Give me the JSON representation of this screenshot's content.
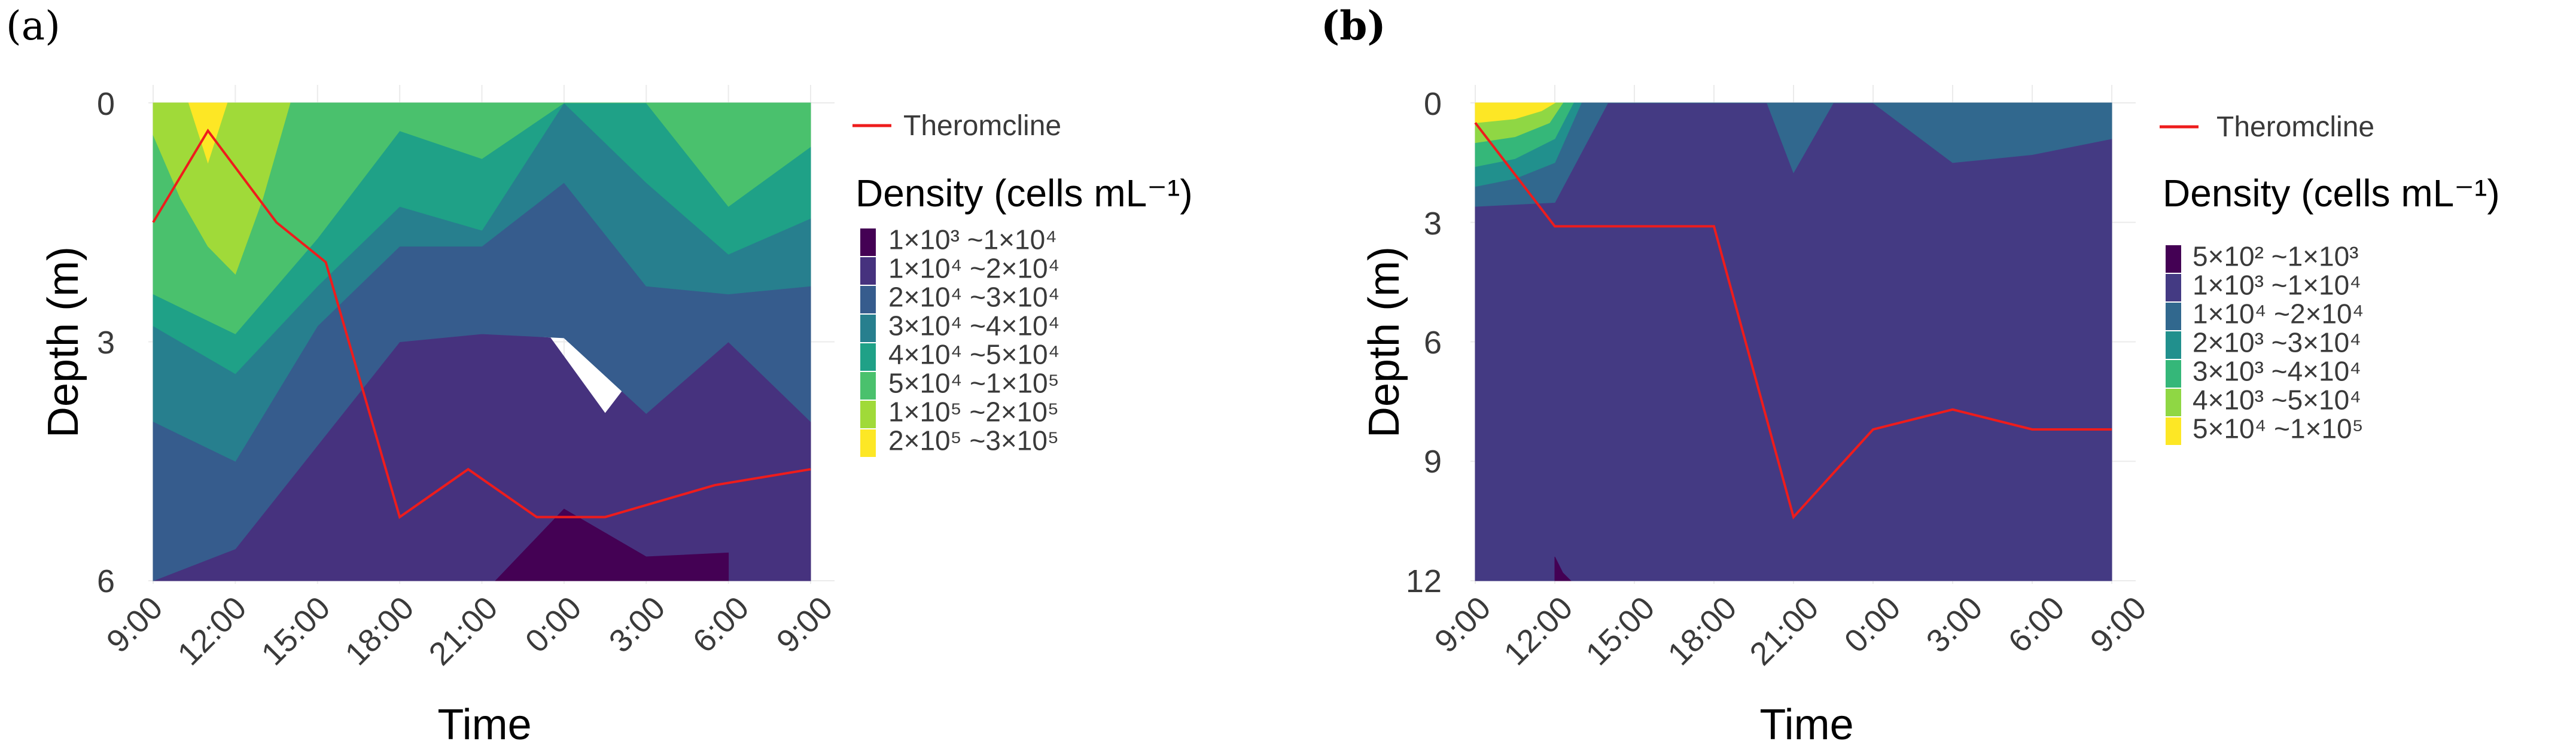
{
  "colors": {
    "thermocline": "#ee1c1c",
    "palette_a": [
      "#440154",
      "#46327e",
      "#365c8d",
      "#277f8e",
      "#1fa187",
      "#4ac16d",
      "#a0da39",
      "#fde725"
    ],
    "palette_b": [
      "#440154",
      "#443a83",
      "#31688e",
      "#21908d",
      "#35b779",
      "#8fd744",
      "#fde725"
    ]
  },
  "chart_data": [
    {
      "panel_label": "(a)",
      "type": "area",
      "subtype": "filled-contour",
      "xlabel": "Time",
      "ylabel": "Depth (m)",
      "x_ticks": [
        "9:00",
        "12:00",
        "15:00",
        "18:00",
        "21:00",
        "0:00",
        "3:00",
        "6:00",
        "9:00"
      ],
      "y_ticks": [
        "0",
        "3",
        "6"
      ],
      "ylim": [
        0,
        6
      ],
      "y_reversed": true,
      "legend_title": "Density (cells mL⁻¹)",
      "thermocline_label": "Theromcline",
      "legend_levels": [
        "1×10³ ~1×10⁴",
        "1×10⁴ ~2×10⁴",
        "2×10⁴ ~3×10⁴",
        "3×10⁴ ~4×10⁴",
        "4×10⁴ ~5×10⁴",
        "5×10⁴ ~1×10⁵",
        "1×10⁵ ~2×10⁵",
        "2×10⁵ ~3×10⁵"
      ],
      "x_hours": [
        0,
        3,
        6,
        9,
        12,
        15,
        18,
        21,
        24
      ],
      "thermocline": {
        "hours": [
          0,
          2,
          4.5,
          6.3,
          9,
          11.5,
          14,
          16.5,
          20.5,
          24
        ],
        "depth": [
          1.5,
          0.35,
          1.5,
          2.0,
          5.2,
          4.6,
          5.2,
          5.2,
          4.8,
          4.6
        ]
      },
      "bands": [
        {
          "level": 0,
          "hours": [
            0,
            24
          ],
          "top": [
            6,
            6
          ],
          "bottom": [
            6,
            6
          ]
        },
        {
          "level": 1,
          "hours": [
            0,
            3,
            6,
            9,
            11,
            12.5,
            14.5,
            16.5,
            18.5,
            21,
            24
          ],
          "top": [
            6,
            5.6,
            4.3,
            3.0,
            2.9,
            2.9,
            2.95,
            3.9,
            3.0,
            2.95,
            4.0
          ],
          "bottom": [
            6,
            6,
            6,
            6,
            6,
            6,
            6,
            6,
            6,
            6,
            6
          ]
        },
        {
          "level": 2,
          "hours": [
            0,
            3,
            6,
            9,
            12,
            15,
            18,
            21,
            24
          ],
          "top": [
            4.0,
            4.5,
            2.8,
            1.8,
            1.8,
            1.0,
            2.3,
            2.4,
            2.3
          ],
          "bottom": [
            6,
            5.6,
            4.3,
            3.0,
            2.9,
            2.95,
            3.9,
            3.0,
            4.0
          ]
        },
        {
          "level": 3,
          "hours": [
            0,
            3,
            6,
            9,
            12,
            15,
            18,
            21,
            24
          ],
          "top": [
            2.8,
            3.4,
            2.3,
            1.3,
            1.6,
            0.0,
            1.0,
            1.9,
            1.45
          ],
          "bottom": [
            4.0,
            4.5,
            2.8,
            1.8,
            1.8,
            1.0,
            2.3,
            2.4,
            2.3
          ]
        },
        {
          "level": 4,
          "hours": [
            0,
            3,
            6,
            9,
            12,
            15,
            18,
            21,
            24
          ],
          "top": [
            2.4,
            2.9,
            1.7,
            0.35,
            0.7,
            0.0,
            0.0,
            1.3,
            0.55
          ],
          "bottom": [
            2.8,
            3.4,
            2.3,
            1.3,
            1.6,
            0.0,
            1.0,
            1.9,
            1.45
          ]
        },
        {
          "level": 5,
          "hours": [
            0,
            3,
            6,
            9,
            12,
            15,
            18,
            21,
            24
          ],
          "top": [
            0.0,
            0.0,
            0.0,
            0.0,
            0.0,
            0.0,
            0.0,
            0.0,
            0.0
          ],
          "bottom": [
            2.4,
            2.9,
            1.7,
            0.35,
            0.7,
            0.0,
            0.0,
            1.3,
            0.55
          ]
        },
        {
          "level": 6,
          "hours": [
            0,
            1,
            2,
            3,
            4,
            5
          ],
          "top": [
            0.0,
            0.0,
            0.0,
            0.0,
            0.0,
            0.0
          ],
          "bottom": [
            0.4,
            1.2,
            1.8,
            2.15,
            1.2,
            0.0
          ]
        },
        {
          "level": 7,
          "hours": [
            1.3,
            2,
            2.7
          ],
          "top": [
            0.0,
            0.0,
            0.0
          ],
          "bottom": [
            0.0,
            0.75,
            0.0
          ]
        },
        {
          "level": 0,
          "hours": [
            12.5,
            15,
            18,
            21,
            21
          ],
          "top": [
            6,
            5.1,
            5.7,
            5.65,
            6
          ],
          "bottom": [
            6,
            6,
            6,
            6,
            6
          ]
        }
      ]
    },
    {
      "panel_label": "(b)",
      "type": "area",
      "subtype": "filled-contour",
      "xlabel": "Time",
      "ylabel": "Depth (m)",
      "x_ticks": [
        "9:00",
        "12:00",
        "15:00",
        "18:00",
        "21:00",
        "0:00",
        "3:00",
        "6:00",
        "9:00"
      ],
      "y_ticks": [
        "0",
        "3",
        "6",
        "9",
        "12"
      ],
      "ylim": [
        0,
        12
      ],
      "y_reversed": true,
      "legend_title": "Density (cells mL⁻¹)",
      "thermocline_label": "Theromcline",
      "legend_levels": [
        "5×10² ~1×10³",
        "1×10³ ~1×10⁴",
        "1×10⁴ ~2×10⁴",
        "2×10³ ~3×10⁴",
        "3×10³ ~4×10⁴",
        "4×10³ ~5×10⁴",
        "5×10⁴ ~1×10⁵"
      ],
      "x_hours": [
        0,
        3,
        6,
        9,
        12,
        15,
        18,
        21,
        24
      ],
      "thermocline": {
        "hours": [
          0,
          3,
          9,
          12,
          15,
          18,
          21,
          24
        ],
        "depth": [
          0.5,
          3.1,
          3.1,
          10.4,
          8.2,
          7.7,
          8.2,
          8.2
        ]
      },
      "bands": [
        {
          "level": 1,
          "hours": [
            0,
            24
          ],
          "top": [
            0,
            0
          ],
          "bottom": [
            12,
            12
          ]
        },
        {
          "level": 2,
          "hours": [
            0,
            3,
            5,
            11,
            12,
            13.5,
            15,
            18,
            21,
            24
          ],
          "top": [
            0,
            0,
            0,
            0,
            0,
            0,
            0,
            0,
            0,
            0
          ],
          "bottom": [
            2.6,
            2.5,
            0.0,
            0.0,
            1.75,
            0.0,
            0.0,
            1.5,
            1.3,
            0.9
          ]
        },
        {
          "level": 3,
          "hours": [
            0,
            1.5,
            3,
            4
          ],
          "top": [
            0,
            0,
            0,
            0
          ],
          "bottom": [
            2.1,
            1.9,
            1.5,
            0.0
          ]
        },
        {
          "level": 4,
          "hours": [
            0,
            1.5,
            3,
            3.7
          ],
          "top": [
            0,
            0,
            0,
            0
          ],
          "bottom": [
            1.6,
            1.4,
            0.9,
            0.0
          ]
        },
        {
          "level": 5,
          "hours": [
            0,
            1.5,
            2.8,
            3.3
          ],
          "top": [
            0,
            0,
            0,
            0
          ],
          "bottom": [
            1.0,
            0.85,
            0.5,
            0.0
          ]
        },
        {
          "level": 6,
          "hours": [
            0,
            1.5,
            2.5,
            3
          ],
          "top": [
            0,
            0,
            0,
            0
          ],
          "bottom": [
            0.5,
            0.4,
            0.2,
            0.0
          ]
        },
        {
          "level": 0,
          "hours": [
            3,
            3,
            3.3,
            3.6
          ],
          "top": [
            12,
            11.4,
            11.8,
            12
          ],
          "bottom": [
            12,
            12,
            12,
            12
          ]
        }
      ]
    }
  ]
}
